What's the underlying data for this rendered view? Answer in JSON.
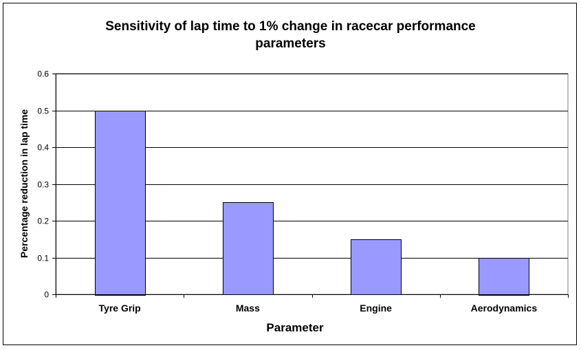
{
  "chart_data": {
    "type": "bar",
    "title_lines": [
      "Sensitivity of lap time to 1% change in racecar performance",
      "parameters"
    ],
    "xlabel": "Parameter",
    "ylabel": "Percentage reduction in lap time",
    "categories": [
      "Tyre Grip",
      "Mass",
      "Engine",
      "Aerodynamics"
    ],
    "values": [
      0.5,
      0.25,
      0.15,
      0.1
    ],
    "ylim": [
      0,
      0.6
    ],
    "yticks": [
      "0",
      "0.1",
      "0.2",
      "0.3",
      "0.4",
      "0.5",
      "0.6"
    ],
    "grid": true,
    "legend": "none",
    "bar_color": "#9999ff",
    "bar_edge_color": "#000000"
  }
}
